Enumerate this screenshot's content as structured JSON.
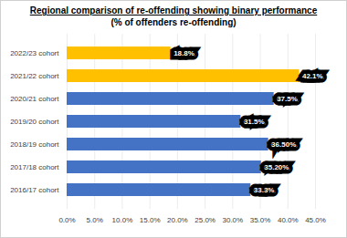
{
  "chart_data": {
    "type": "bar",
    "orientation": "horizontal",
    "title": "Regional comparison of re-offending showing binary performance",
    "subtitle": "(% of offenders re-offending)",
    "categories": [
      "2022/23 cohort",
      "2021/22 cohort",
      "2020/21 cohort",
      "2019/20 cohort",
      "2018/19 cohort",
      "2017/18 cohort",
      "2016/17 cohort"
    ],
    "values": [
      18.8,
      42.1,
      37.5,
      31.5,
      36.5,
      35.2,
      33.3
    ],
    "value_labels": [
      "18.8%",
      "42.1%",
      "37.5%",
      "31.5%",
      "36.50%",
      "35.20%",
      "33.3%"
    ],
    "colors": [
      "#FFC000",
      "#FFC000",
      "#4472C4",
      "#4472C4",
      "#4472C4",
      "#4472C4",
      "#4472C4"
    ],
    "xlim": [
      0,
      45
    ],
    "xticks": [
      {
        "value": 0,
        "label": "0.0%"
      },
      {
        "value": 5,
        "label": "5.0%"
      },
      {
        "value": 10,
        "label": "10.0%"
      },
      {
        "value": 15,
        "label": "15.0%"
      },
      {
        "value": 20,
        "label": "20.0%"
      },
      {
        "value": 25,
        "label": "25.0%"
      },
      {
        "value": 30,
        "label": "30.0%"
      },
      {
        "value": 35,
        "label": "35.0%"
      },
      {
        "value": 40,
        "label": "40.0%"
      },
      {
        "value": 45,
        "label": "45.0%"
      }
    ],
    "grid": true,
    "data_labels": true
  }
}
